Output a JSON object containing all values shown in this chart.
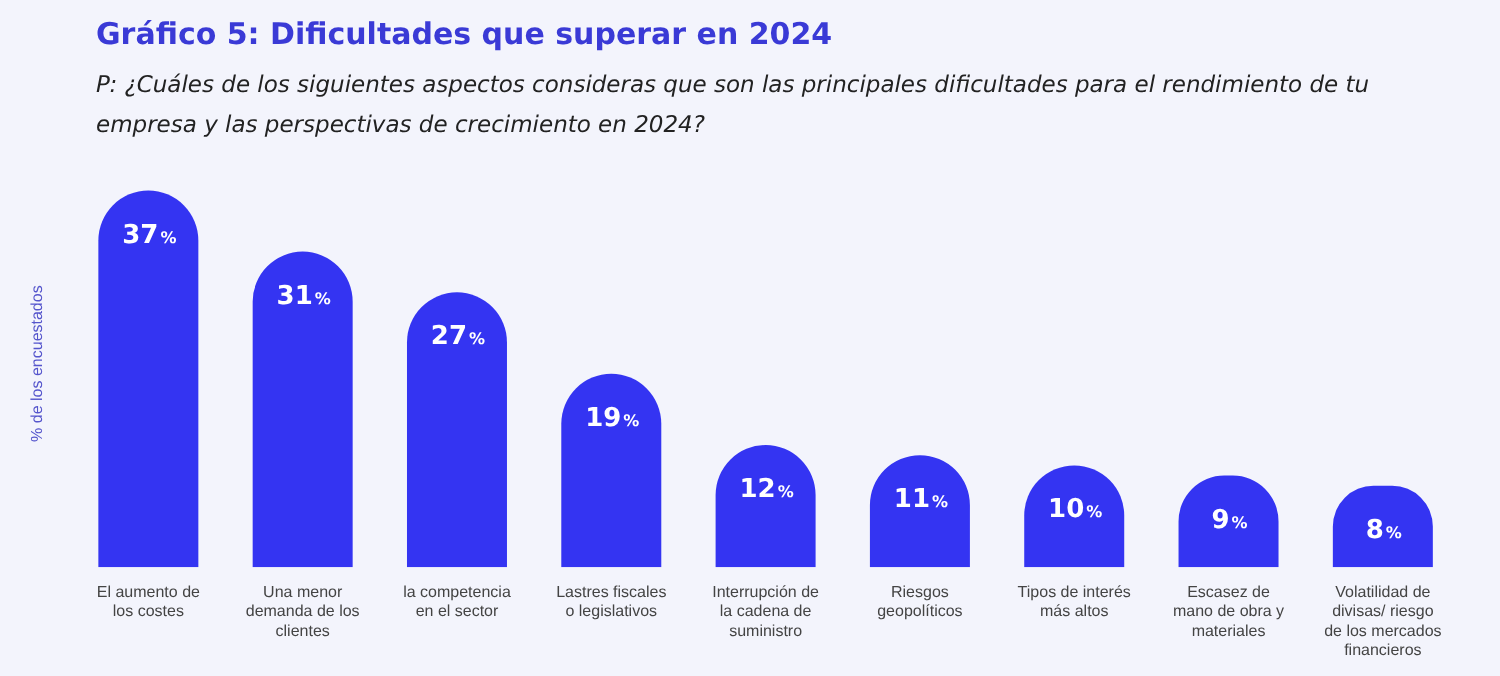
{
  "chart_data": {
    "type": "bar",
    "title": "Gráfico 5: Dificultades que superar en 2024",
    "subtitle": "P: ¿Cuáles de los siguientes aspectos consideras que son las principales dificultades para el rendimiento de tu empresa y las perspectivas de crecimiento en 2024?",
    "ylabel": "% de los encuestados",
    "categories": [
      "El aumento de los costes",
      "Una menor demanda de los clientes",
      "la competencia en el sector",
      "Lastres fiscales o legislativos",
      "Interrupción de la cadena de suministro",
      "Riesgos geopolíticos",
      "Tipos de interés más altos",
      "Escasez de mano de obra y materiales",
      "Volatilidad de divisas/ riesgo de los mercados financieros"
    ],
    "values": [
      37,
      31,
      27,
      19,
      12,
      11,
      10,
      9,
      8
    ],
    "color": "#3434f2",
    "value_labels": [
      "37%",
      "31%",
      "27%",
      "19%",
      "12%",
      "11%",
      "10%",
      "9%",
      "8%"
    ],
    "grid": false,
    "legend": false
  }
}
